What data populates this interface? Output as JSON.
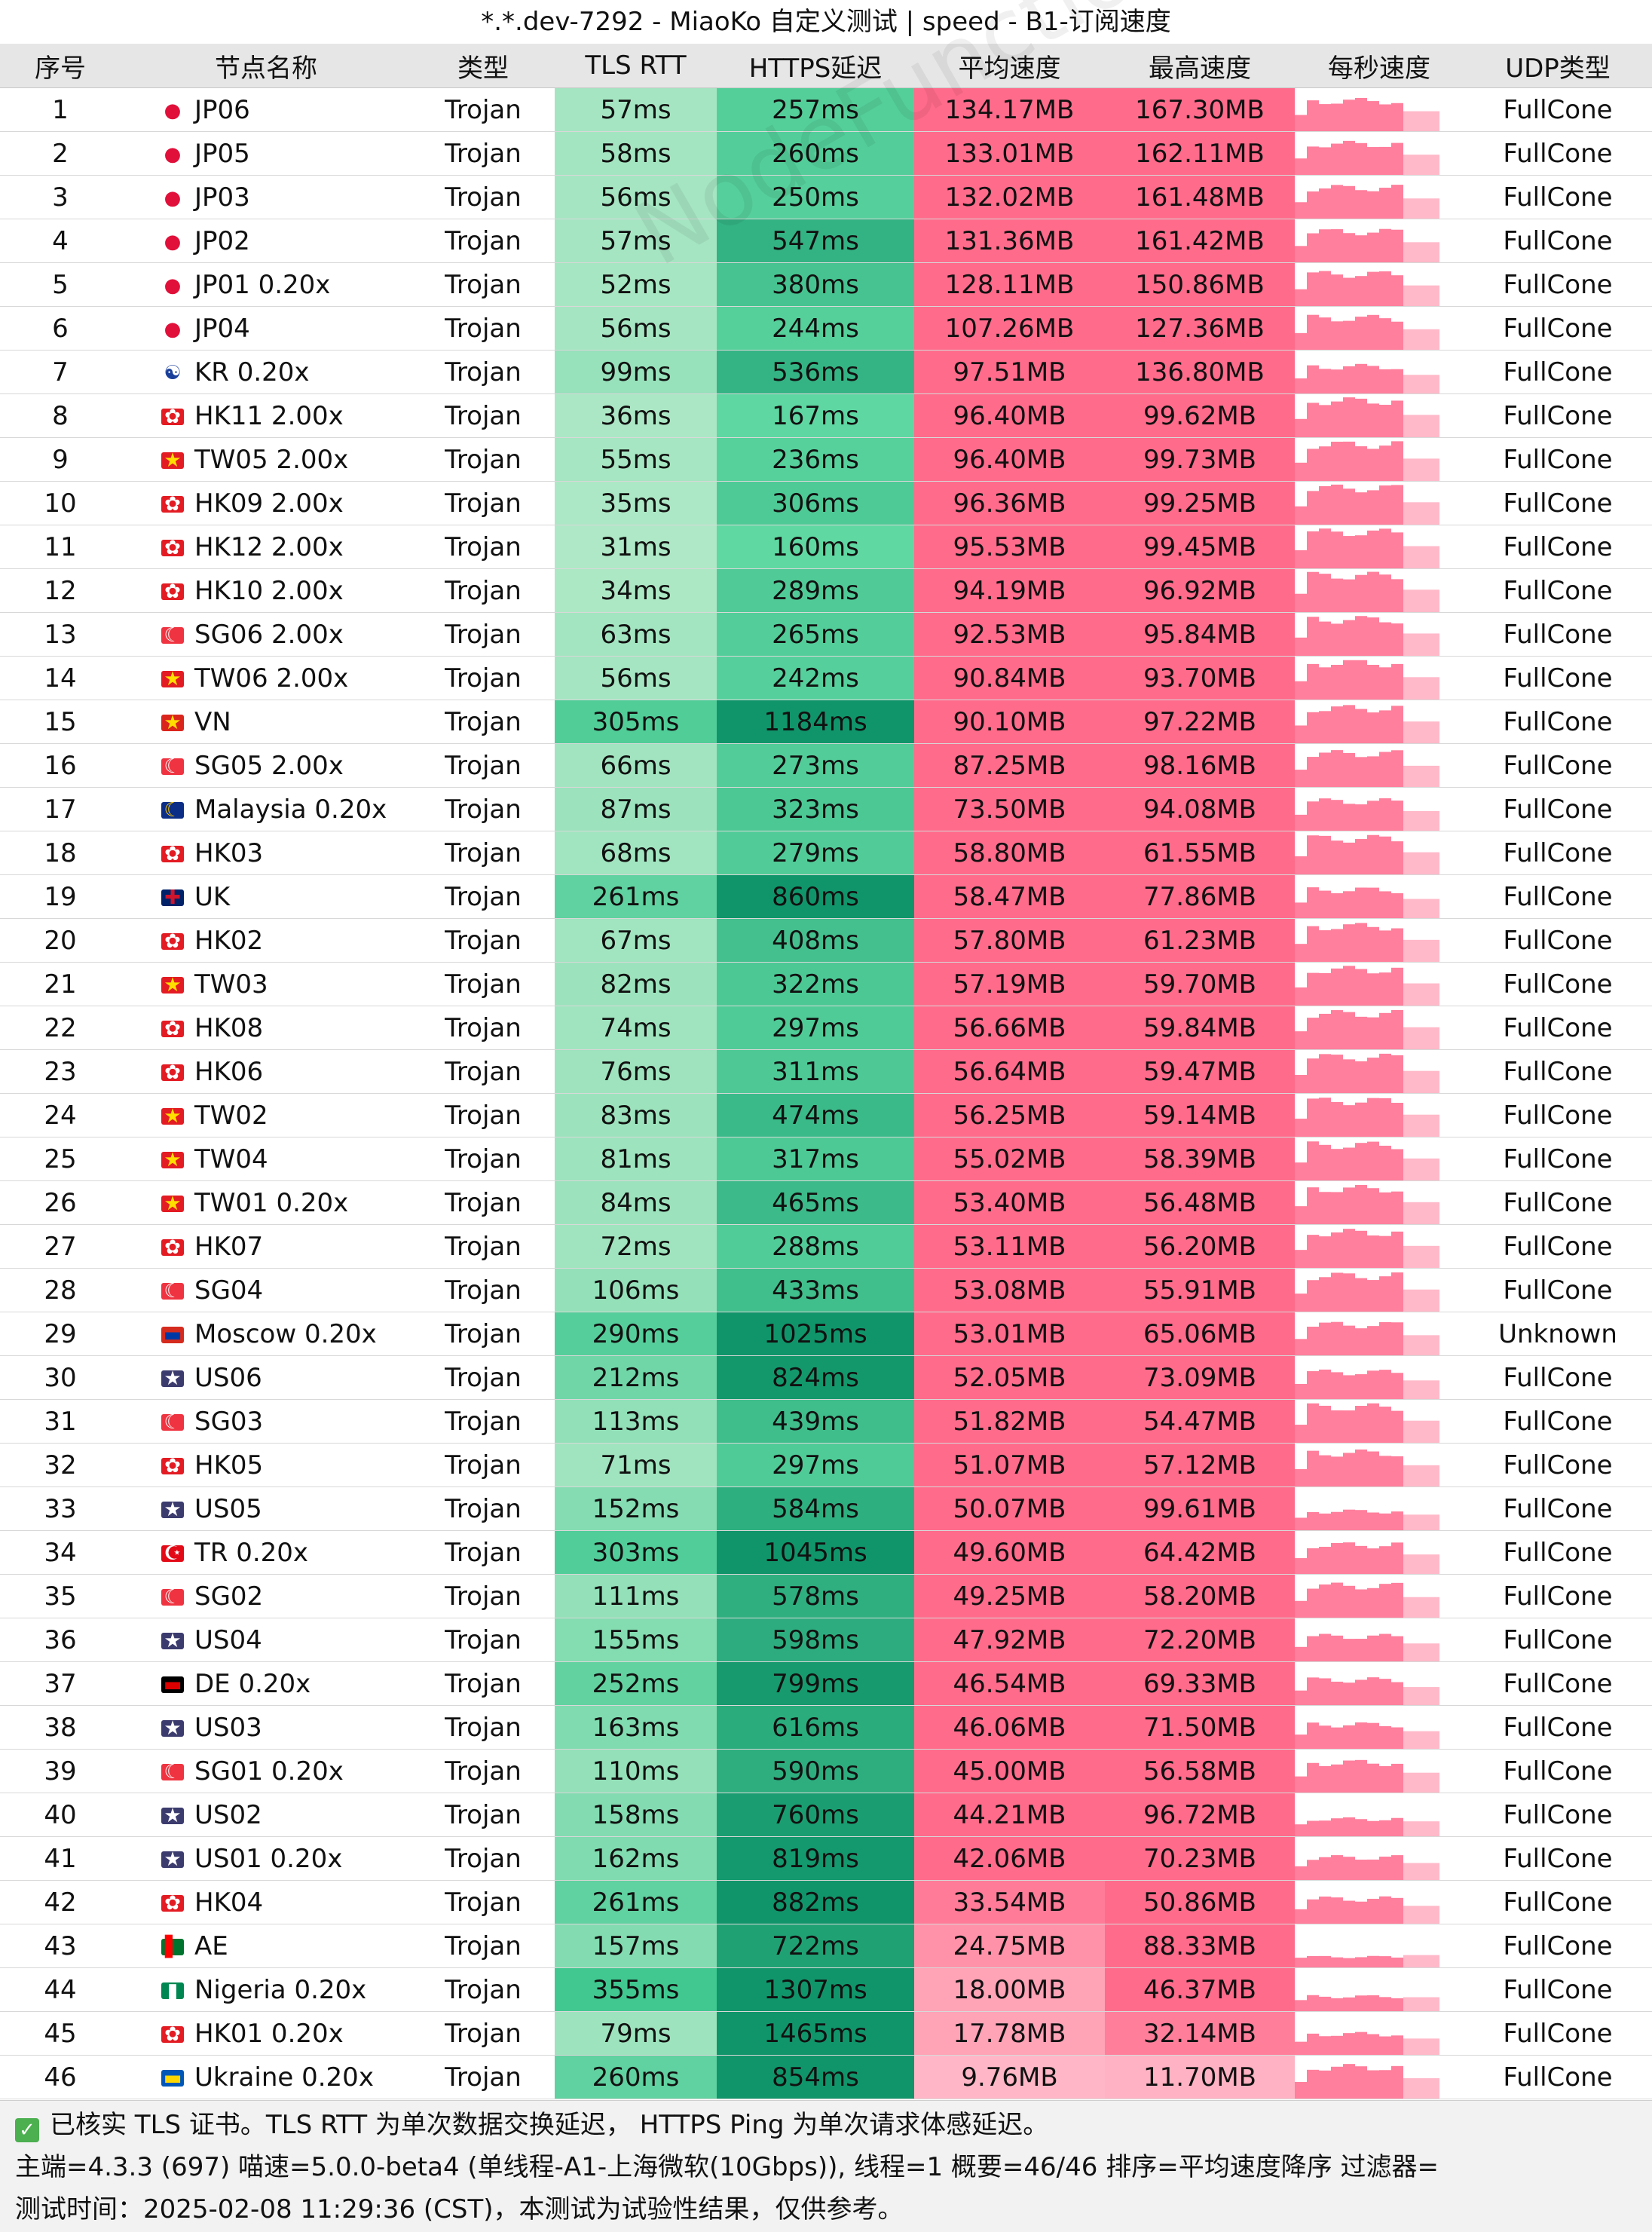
{
  "window_title": "*.*.dev-7292 - MiaoKo 自定义测试 | speed - B1-订阅速度",
  "columns": [
    "序号",
    "节点名称",
    "类型",
    "TLS RTT",
    "HTTPS延迟",
    "平均速度",
    "最高速度",
    "每秒速度",
    "UDP类型"
  ],
  "watermark": "NodeFunction",
  "colors": {
    "rtt_light": "#aee8c6",
    "rtt_dark": "#3ec78f",
    "https_light": "#60d9a3",
    "https_dark": "#10956a",
    "speed_high": "#ff6b8b",
    "speed_low": "#ffd0da",
    "bar": "#ff7f9c"
  },
  "rows": [
    {
      "idx": "1",
      "flag": "jp-flag-icon",
      "name": "JP06",
      "type": "Trojan",
      "rtt": "57ms",
      "https": "257ms",
      "avg": "134.17MB",
      "max": "167.30MB",
      "udp": "FullCone",
      "rtt_ms": 57,
      "https_ms": 257,
      "avg_mb": 134.17,
      "max_mb": 167.3
    },
    {
      "idx": "2",
      "flag": "jp-flag-icon",
      "name": "JP05",
      "type": "Trojan",
      "rtt": "58ms",
      "https": "260ms",
      "avg": "133.01MB",
      "max": "162.11MB",
      "udp": "FullCone",
      "rtt_ms": 58,
      "https_ms": 260,
      "avg_mb": 133.01,
      "max_mb": 162.11
    },
    {
      "idx": "3",
      "flag": "jp-flag-icon",
      "name": "JP03",
      "type": "Trojan",
      "rtt": "56ms",
      "https": "250ms",
      "avg": "132.02MB",
      "max": "161.48MB",
      "udp": "FullCone",
      "rtt_ms": 56,
      "https_ms": 250,
      "avg_mb": 132.02,
      "max_mb": 161.48
    },
    {
      "idx": "4",
      "flag": "jp-flag-icon",
      "name": "JP02",
      "type": "Trojan",
      "rtt": "57ms",
      "https": "547ms",
      "avg": "131.36MB",
      "max": "161.42MB",
      "udp": "FullCone",
      "rtt_ms": 57,
      "https_ms": 547,
      "avg_mb": 131.36,
      "max_mb": 161.42
    },
    {
      "idx": "5",
      "flag": "jp-flag-icon",
      "name": "JP01 0.20x",
      "type": "Trojan",
      "rtt": "52ms",
      "https": "380ms",
      "avg": "128.11MB",
      "max": "150.86MB",
      "udp": "FullCone",
      "rtt_ms": 52,
      "https_ms": 380,
      "avg_mb": 128.11,
      "max_mb": 150.86
    },
    {
      "idx": "6",
      "flag": "jp-flag-icon",
      "name": "JP04",
      "type": "Trojan",
      "rtt": "56ms",
      "https": "244ms",
      "avg": "107.26MB",
      "max": "127.36MB",
      "udp": "FullCone",
      "rtt_ms": 56,
      "https_ms": 244,
      "avg_mb": 107.26,
      "max_mb": 127.36
    },
    {
      "idx": "7",
      "flag": "kr-flag-icon",
      "name": "KR 0.20x",
      "type": "Trojan",
      "rtt": "99ms",
      "https": "536ms",
      "avg": "97.51MB",
      "max": "136.80MB",
      "udp": "FullCone",
      "rtt_ms": 99,
      "https_ms": 536,
      "avg_mb": 97.51,
      "max_mb": 136.8
    },
    {
      "idx": "8",
      "flag": "hk-flag-icon",
      "name": "HK11 2.00x",
      "type": "Trojan",
      "rtt": "36ms",
      "https": "167ms",
      "avg": "96.40MB",
      "max": "99.62MB",
      "udp": "FullCone",
      "rtt_ms": 36,
      "https_ms": 167,
      "avg_mb": 96.4,
      "max_mb": 99.62
    },
    {
      "idx": "9",
      "flag": "cn-flag-icon",
      "name": "TW05 2.00x",
      "type": "Trojan",
      "rtt": "55ms",
      "https": "236ms",
      "avg": "96.40MB",
      "max": "99.73MB",
      "udp": "FullCone",
      "rtt_ms": 55,
      "https_ms": 236,
      "avg_mb": 96.4,
      "max_mb": 99.73
    },
    {
      "idx": "10",
      "flag": "hk-flag-icon",
      "name": "HK09 2.00x",
      "type": "Trojan",
      "rtt": "35ms",
      "https": "306ms",
      "avg": "96.36MB",
      "max": "99.25MB",
      "udp": "FullCone",
      "rtt_ms": 35,
      "https_ms": 306,
      "avg_mb": 96.36,
      "max_mb": 99.25
    },
    {
      "idx": "11",
      "flag": "hk-flag-icon",
      "name": "HK12 2.00x",
      "type": "Trojan",
      "rtt": "31ms",
      "https": "160ms",
      "avg": "95.53MB",
      "max": "99.45MB",
      "udp": "FullCone",
      "rtt_ms": 31,
      "https_ms": 160,
      "avg_mb": 95.53,
      "max_mb": 99.45
    },
    {
      "idx": "12",
      "flag": "hk-flag-icon",
      "name": "HK10 2.00x",
      "type": "Trojan",
      "rtt": "34ms",
      "https": "289ms",
      "avg": "94.19MB",
      "max": "96.92MB",
      "udp": "FullCone",
      "rtt_ms": 34,
      "https_ms": 289,
      "avg_mb": 94.19,
      "max_mb": 96.92
    },
    {
      "idx": "13",
      "flag": "sg-flag-icon",
      "name": "SG06 2.00x",
      "type": "Trojan",
      "rtt": "63ms",
      "https": "265ms",
      "avg": "92.53MB",
      "max": "95.84MB",
      "udp": "FullCone",
      "rtt_ms": 63,
      "https_ms": 265,
      "avg_mb": 92.53,
      "max_mb": 95.84
    },
    {
      "idx": "14",
      "flag": "cn-flag-icon",
      "name": "TW06 2.00x",
      "type": "Trojan",
      "rtt": "56ms",
      "https": "242ms",
      "avg": "90.84MB",
      "max": "93.70MB",
      "udp": "FullCone",
      "rtt_ms": 56,
      "https_ms": 242,
      "avg_mb": 90.84,
      "max_mb": 93.7
    },
    {
      "idx": "15",
      "flag": "vn-flag-icon",
      "name": "VN",
      "type": "Trojan",
      "rtt": "305ms",
      "https": "1184ms",
      "avg": "90.10MB",
      "max": "97.22MB",
      "udp": "FullCone",
      "rtt_ms": 305,
      "https_ms": 1184,
      "avg_mb": 90.1,
      "max_mb": 97.22
    },
    {
      "idx": "16",
      "flag": "sg-flag-icon",
      "name": "SG05 2.00x",
      "type": "Trojan",
      "rtt": "66ms",
      "https": "273ms",
      "avg": "87.25MB",
      "max": "98.16MB",
      "udp": "FullCone",
      "rtt_ms": 66,
      "https_ms": 273,
      "avg_mb": 87.25,
      "max_mb": 98.16
    },
    {
      "idx": "17",
      "flag": "my-flag-icon",
      "name": "Malaysia 0.20x",
      "type": "Trojan",
      "rtt": "87ms",
      "https": "323ms",
      "avg": "73.50MB",
      "max": "94.08MB",
      "udp": "FullCone",
      "rtt_ms": 87,
      "https_ms": 323,
      "avg_mb": 73.5,
      "max_mb": 94.08
    },
    {
      "idx": "18",
      "flag": "hk-flag-icon",
      "name": "HK03",
      "type": "Trojan",
      "rtt": "68ms",
      "https": "279ms",
      "avg": "58.80MB",
      "max": "61.55MB",
      "udp": "FullCone",
      "rtt_ms": 68,
      "https_ms": 279,
      "avg_mb": 58.8,
      "max_mb": 61.55
    },
    {
      "idx": "19",
      "flag": "uk-flag-icon",
      "name": "UK",
      "type": "Trojan",
      "rtt": "261ms",
      "https": "860ms",
      "avg": "58.47MB",
      "max": "77.86MB",
      "udp": "FullCone",
      "rtt_ms": 261,
      "https_ms": 860,
      "avg_mb": 58.47,
      "max_mb": 77.86
    },
    {
      "idx": "20",
      "flag": "hk-flag-icon",
      "name": "HK02",
      "type": "Trojan",
      "rtt": "67ms",
      "https": "408ms",
      "avg": "57.80MB",
      "max": "61.23MB",
      "udp": "FullCone",
      "rtt_ms": 67,
      "https_ms": 408,
      "avg_mb": 57.8,
      "max_mb": 61.23
    },
    {
      "idx": "21",
      "flag": "cn-flag-icon",
      "name": "TW03",
      "type": "Trojan",
      "rtt": "82ms",
      "https": "322ms",
      "avg": "57.19MB",
      "max": "59.70MB",
      "udp": "FullCone",
      "rtt_ms": 82,
      "https_ms": 322,
      "avg_mb": 57.19,
      "max_mb": 59.7
    },
    {
      "idx": "22",
      "flag": "hk-flag-icon",
      "name": "HK08",
      "type": "Trojan",
      "rtt": "74ms",
      "https": "297ms",
      "avg": "56.66MB",
      "max": "59.84MB",
      "udp": "FullCone",
      "rtt_ms": 74,
      "https_ms": 297,
      "avg_mb": 56.66,
      "max_mb": 59.84
    },
    {
      "idx": "23",
      "flag": "hk-flag-icon",
      "name": "HK06",
      "type": "Trojan",
      "rtt": "76ms",
      "https": "311ms",
      "avg": "56.64MB",
      "max": "59.47MB",
      "udp": "FullCone",
      "rtt_ms": 76,
      "https_ms": 311,
      "avg_mb": 56.64,
      "max_mb": 59.47
    },
    {
      "idx": "24",
      "flag": "cn-flag-icon",
      "name": "TW02",
      "type": "Trojan",
      "rtt": "83ms",
      "https": "474ms",
      "avg": "56.25MB",
      "max": "59.14MB",
      "udp": "FullCone",
      "rtt_ms": 83,
      "https_ms": 474,
      "avg_mb": 56.25,
      "max_mb": 59.14
    },
    {
      "idx": "25",
      "flag": "cn-flag-icon",
      "name": "TW04",
      "type": "Trojan",
      "rtt": "81ms",
      "https": "317ms",
      "avg": "55.02MB",
      "max": "58.39MB",
      "udp": "FullCone",
      "rtt_ms": 81,
      "https_ms": 317,
      "avg_mb": 55.02,
      "max_mb": 58.39
    },
    {
      "idx": "26",
      "flag": "cn-flag-icon",
      "name": "TW01 0.20x",
      "type": "Trojan",
      "rtt": "84ms",
      "https": "465ms",
      "avg": "53.40MB",
      "max": "56.48MB",
      "udp": "FullCone",
      "rtt_ms": 84,
      "https_ms": 465,
      "avg_mb": 53.4,
      "max_mb": 56.48
    },
    {
      "idx": "27",
      "flag": "hk-flag-icon",
      "name": "HK07",
      "type": "Trojan",
      "rtt": "72ms",
      "https": "288ms",
      "avg": "53.11MB",
      "max": "56.20MB",
      "udp": "FullCone",
      "rtt_ms": 72,
      "https_ms": 288,
      "avg_mb": 53.11,
      "max_mb": 56.2
    },
    {
      "idx": "28",
      "flag": "sg-flag-icon",
      "name": "SG04",
      "type": "Trojan",
      "rtt": "106ms",
      "https": "433ms",
      "avg": "53.08MB",
      "max": "55.91MB",
      "udp": "FullCone",
      "rtt_ms": 106,
      "https_ms": 433,
      "avg_mb": 53.08,
      "max_mb": 55.91
    },
    {
      "idx": "29",
      "flag": "ru-flag-icon",
      "name": "Moscow 0.20x",
      "type": "Trojan",
      "rtt": "290ms",
      "https": "1025ms",
      "avg": "53.01MB",
      "max": "65.06MB",
      "udp": "Unknown",
      "rtt_ms": 290,
      "https_ms": 1025,
      "avg_mb": 53.01,
      "max_mb": 65.06
    },
    {
      "idx": "30",
      "flag": "us-flag-icon",
      "name": "US06",
      "type": "Trojan",
      "rtt": "212ms",
      "https": "824ms",
      "avg": "52.05MB",
      "max": "73.09MB",
      "udp": "FullCone",
      "rtt_ms": 212,
      "https_ms": 824,
      "avg_mb": 52.05,
      "max_mb": 73.09
    },
    {
      "idx": "31",
      "flag": "sg-flag-icon",
      "name": "SG03",
      "type": "Trojan",
      "rtt": "113ms",
      "https": "439ms",
      "avg": "51.82MB",
      "max": "54.47MB",
      "udp": "FullCone",
      "rtt_ms": 113,
      "https_ms": 439,
      "avg_mb": 51.82,
      "max_mb": 54.47
    },
    {
      "idx": "32",
      "flag": "hk-flag-icon",
      "name": "HK05",
      "type": "Trojan",
      "rtt": "71ms",
      "https": "297ms",
      "avg": "51.07MB",
      "max": "57.12MB",
      "udp": "FullCone",
      "rtt_ms": 71,
      "https_ms": 297,
      "avg_mb": 51.07,
      "max_mb": 57.12
    },
    {
      "idx": "33",
      "flag": "us-flag-icon",
      "name": "US05",
      "type": "Trojan",
      "rtt": "152ms",
      "https": "584ms",
      "avg": "50.07MB",
      "max": "99.61MB",
      "udp": "FullCone",
      "rtt_ms": 152,
      "https_ms": 584,
      "avg_mb": 50.07,
      "max_mb": 99.61
    },
    {
      "idx": "34",
      "flag": "tr-flag-icon",
      "name": "TR 0.20x",
      "type": "Trojan",
      "rtt": "303ms",
      "https": "1045ms",
      "avg": "49.60MB",
      "max": "64.42MB",
      "udp": "FullCone",
      "rtt_ms": 303,
      "https_ms": 1045,
      "avg_mb": 49.6,
      "max_mb": 64.42
    },
    {
      "idx": "35",
      "flag": "sg-flag-icon",
      "name": "SG02",
      "type": "Trojan",
      "rtt": "111ms",
      "https": "578ms",
      "avg": "49.25MB",
      "max": "58.20MB",
      "udp": "FullCone",
      "rtt_ms": 111,
      "https_ms": 578,
      "avg_mb": 49.25,
      "max_mb": 58.2
    },
    {
      "idx": "36",
      "flag": "us-flag-icon",
      "name": "US04",
      "type": "Trojan",
      "rtt": "155ms",
      "https": "598ms",
      "avg": "47.92MB",
      "max": "72.20MB",
      "udp": "FullCone",
      "rtt_ms": 155,
      "https_ms": 598,
      "avg_mb": 47.92,
      "max_mb": 72.2
    },
    {
      "idx": "37",
      "flag": "de-flag-icon",
      "name": "DE 0.20x",
      "type": "Trojan",
      "rtt": "252ms",
      "https": "799ms",
      "avg": "46.54MB",
      "max": "69.33MB",
      "udp": "FullCone",
      "rtt_ms": 252,
      "https_ms": 799,
      "avg_mb": 46.54,
      "max_mb": 69.33
    },
    {
      "idx": "38",
      "flag": "us-flag-icon",
      "name": "US03",
      "type": "Trojan",
      "rtt": "163ms",
      "https": "616ms",
      "avg": "46.06MB",
      "max": "71.50MB",
      "udp": "FullCone",
      "rtt_ms": 163,
      "https_ms": 616,
      "avg_mb": 46.06,
      "max_mb": 71.5
    },
    {
      "idx": "39",
      "flag": "sg-flag-icon",
      "name": "SG01 0.20x",
      "type": "Trojan",
      "rtt": "110ms",
      "https": "590ms",
      "avg": "45.00MB",
      "max": "56.58MB",
      "udp": "FullCone",
      "rtt_ms": 110,
      "https_ms": 590,
      "avg_mb": 45.0,
      "max_mb": 56.58
    },
    {
      "idx": "40",
      "flag": "us-flag-icon",
      "name": "US02",
      "type": "Trojan",
      "rtt": "158ms",
      "https": "760ms",
      "avg": "44.21MB",
      "max": "96.72MB",
      "udp": "FullCone",
      "rtt_ms": 158,
      "https_ms": 760,
      "avg_mb": 44.21,
      "max_mb": 96.72
    },
    {
      "idx": "41",
      "flag": "us-flag-icon",
      "name": "US01 0.20x",
      "type": "Trojan",
      "rtt": "162ms",
      "https": "819ms",
      "avg": "42.06MB",
      "max": "70.23MB",
      "udp": "FullCone",
      "rtt_ms": 162,
      "https_ms": 819,
      "avg_mb": 42.06,
      "max_mb": 70.23
    },
    {
      "idx": "42",
      "flag": "hk-flag-icon",
      "name": "HK04",
      "type": "Trojan",
      "rtt": "261ms",
      "https": "882ms",
      "avg": "33.54MB",
      "max": "50.86MB",
      "udp": "FullCone",
      "rtt_ms": 261,
      "https_ms": 882,
      "avg_mb": 33.54,
      "max_mb": 50.86
    },
    {
      "idx": "43",
      "flag": "ae-flag-icon",
      "name": "AE",
      "type": "Trojan",
      "rtt": "157ms",
      "https": "722ms",
      "avg": "24.75MB",
      "max": "88.33MB",
      "udp": "FullCone",
      "rtt_ms": 157,
      "https_ms": 722,
      "avg_mb": 24.75,
      "max_mb": 88.33
    },
    {
      "idx": "44",
      "flag": "ng-flag-icon",
      "name": "Nigeria 0.20x",
      "type": "Trojan",
      "rtt": "355ms",
      "https": "1307ms",
      "avg": "18.00MB",
      "max": "46.37MB",
      "udp": "FullCone",
      "rtt_ms": 355,
      "https_ms": 1307,
      "avg_mb": 18.0,
      "max_mb": 46.37
    },
    {
      "idx": "45",
      "flag": "hk-flag-icon",
      "name": "HK01 0.20x",
      "type": "Trojan",
      "rtt": "79ms",
      "https": "1465ms",
      "avg": "17.78MB",
      "max": "32.14MB",
      "udp": "FullCone",
      "rtt_ms": 79,
      "https_ms": 1465,
      "avg_mb": 17.78,
      "max_mb": 32.14
    },
    {
      "idx": "46",
      "flag": "ua-flag-icon",
      "name": "Ukraine 0.20x",
      "type": "Trojan",
      "rtt": "260ms",
      "https": "854ms",
      "avg": "9.76MB",
      "max": "11.70MB",
      "udp": "FullCone",
      "rtt_ms": 260,
      "https_ms": 854,
      "avg_mb": 9.76,
      "max_mb": 11.7
    }
  ],
  "footer": {
    "line1": "已核实 TLS 证书。TLS RTT 为单次数据交换延迟， HTTPS Ping 为单次请求体感延迟。",
    "line2": "主端=4.3.3 (697) 喵速=5.0.0-beta4 (单线程-A1-上海微软(10Gbps)), 线程=1 概要=46/46 排序=平均速度降序 过滤器=",
    "line3": "测试时间：2025-02-08 11:29:36 (CST)，本测试为试验性结果，仅供参考。"
  }
}
